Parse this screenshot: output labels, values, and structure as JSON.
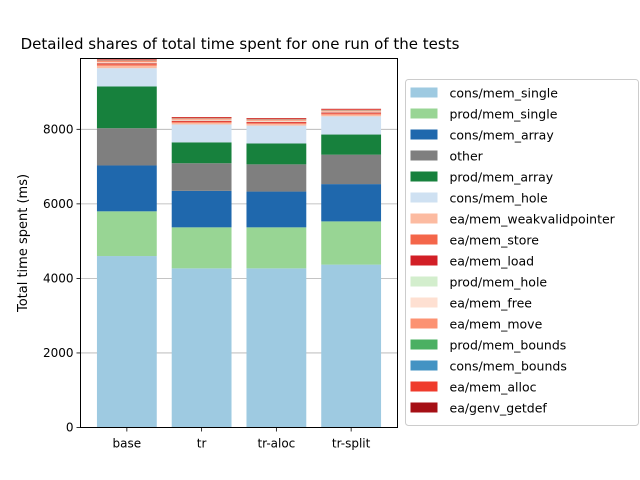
{
  "chart_data": {
    "type": "bar",
    "stacked": true,
    "title": "Detailed shares of total time spent for one run of the tests",
    "xlabel": "",
    "ylabel": "Total time spent (ms)",
    "ylim": [
      0,
      9900
    ],
    "yticks": [
      0,
      2000,
      4000,
      6000,
      8000
    ],
    "grid": "horizontal",
    "legend_position": "right",
    "categories": [
      "base",
      "tr",
      "tr-aloc",
      "tr-split"
    ],
    "series": [
      {
        "name": "cons/mem_single",
        "color": "#9ecae1",
        "values": [
          4600,
          4270,
          4270,
          4370
        ]
      },
      {
        "name": "prod/mem_single",
        "color": "#98d594",
        "values": [
          1200,
          1100,
          1100,
          1160
        ]
      },
      {
        "name": "cons/mem_array",
        "color": "#1f68ad",
        "values": [
          1230,
          980,
          960,
          1000
        ]
      },
      {
        "name": "other",
        "color": "#7f7f7f",
        "values": [
          1000,
          740,
          730,
          790
        ]
      },
      {
        "name": "prod/mem_array",
        "color": "#17813d",
        "values": [
          1120,
          560,
          560,
          540
        ]
      },
      {
        "name": "cons/mem_hole",
        "color": "#cfe1f2",
        "values": [
          490,
          480,
          480,
          490
        ]
      },
      {
        "name": "ea/mem_weakvalidpointer",
        "color": "#fcbba1",
        "values": [
          70,
          50,
          50,
          50
        ]
      },
      {
        "name": "ea/mem_store",
        "color": "#f4664a",
        "values": [
          40,
          30,
          30,
          30
        ]
      },
      {
        "name": "ea/mem_load",
        "color": "#d21f26",
        "values": [
          20,
          20,
          20,
          20
        ]
      },
      {
        "name": "prod/mem_hole",
        "color": "#d3eecd",
        "values": [
          10,
          10,
          10,
          10
        ]
      },
      {
        "name": "ea/mem_free",
        "color": "#fee0d2",
        "values": [
          20,
          20,
          20,
          20
        ]
      },
      {
        "name": "ea/mem_move",
        "color": "#fc9272",
        "values": [
          40,
          30,
          30,
          30
        ]
      },
      {
        "name": "prod/mem_bounds",
        "color": "#4bb062",
        "values": [
          5,
          5,
          5,
          5
        ]
      },
      {
        "name": "cons/mem_bounds",
        "color": "#4393c3",
        "values": [
          5,
          5,
          5,
          5
        ]
      },
      {
        "name": "ea/mem_alloc",
        "color": "#ef3b2c",
        "values": [
          20,
          20,
          20,
          20
        ]
      },
      {
        "name": "ea/genv_getdef",
        "color": "#a50f15",
        "values": [
          10,
          10,
          10,
          10
        ]
      }
    ]
  }
}
